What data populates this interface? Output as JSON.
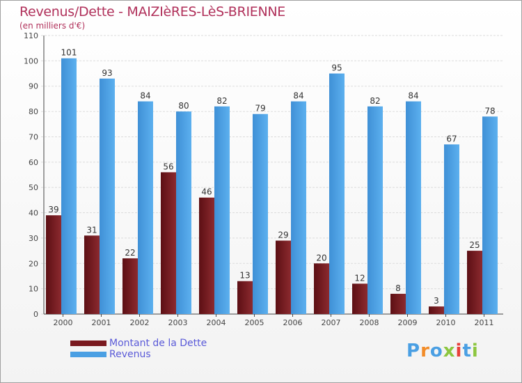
{
  "title": "Revenus/Dette - MAIZIèRES-LèS-BRIENNE",
  "subtitle": "(en milliers d'€)",
  "logo": "Proxiti",
  "colors": {
    "dette": "#7a1a1f",
    "revenus": "#4a9fe3",
    "title": "#b0305a"
  },
  "chart_data": {
    "type": "bar",
    "categories": [
      "2000",
      "2001",
      "2002",
      "2003",
      "2004",
      "2005",
      "2006",
      "2007",
      "2008",
      "2009",
      "2010",
      "2011"
    ],
    "series": [
      {
        "name": "Montant de la Dette",
        "values": [
          39,
          31,
          22,
          56,
          46,
          13,
          29,
          20,
          12,
          8,
          3,
          25
        ]
      },
      {
        "name": "Revenus",
        "values": [
          101,
          93,
          84,
          80,
          82,
          79,
          84,
          95,
          82,
          84,
          67,
          78
        ]
      }
    ],
    "ylim": [
      0,
      110
    ],
    "yticks": [
      0,
      10,
      20,
      30,
      40,
      50,
      60,
      70,
      80,
      90,
      100,
      110
    ],
    "grid": true,
    "legend_position": "bottom-left"
  }
}
